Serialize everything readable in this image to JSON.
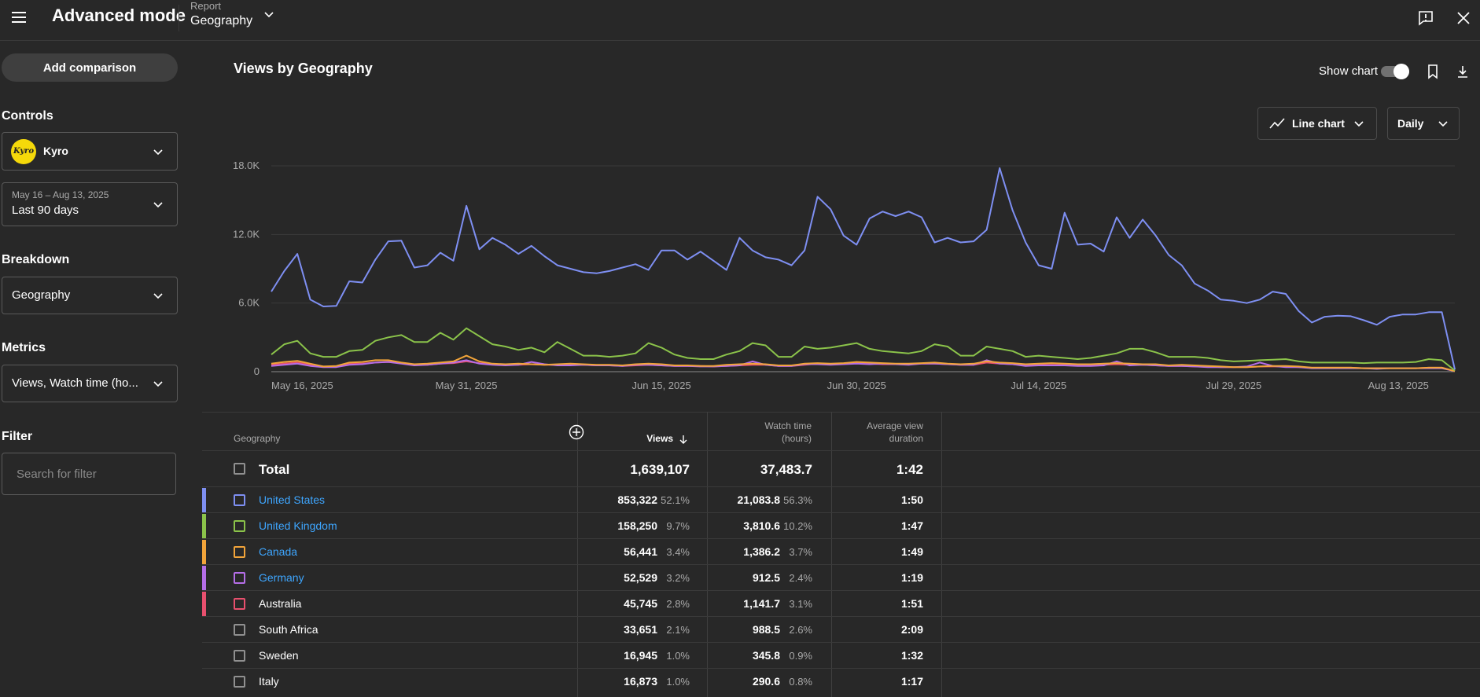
{
  "app": {
    "title": "Advanced mode"
  },
  "report": {
    "label": "Report",
    "value": "Geography"
  },
  "sidebar": {
    "add_comparison": "Add comparison",
    "controls_heading": "Controls",
    "channel": {
      "name": "Kyro",
      "avatar_text": "Kyro"
    },
    "date": {
      "range": "May 16 – Aug 13, 2025",
      "label": "Last 90 days"
    },
    "breakdown_heading": "Breakdown",
    "breakdown_value": "Geography",
    "metrics_heading": "Metrics",
    "metrics_value": "Views, Watch time (ho...",
    "filter_heading": "Filter",
    "filter_placeholder": "Search for filter"
  },
  "main": {
    "title": "Views by Geography",
    "show_chart_label": "Show chart",
    "show_chart_on": true,
    "chart_type_label": "Line chart",
    "granularity_label": "Daily"
  },
  "chart_data": {
    "type": "line",
    "y_ticks": [
      {
        "value": 0,
        "label": "0"
      },
      {
        "value": 6000,
        "label": "6.0K"
      },
      {
        "value": 12000,
        "label": "12.0K"
      },
      {
        "value": 18000,
        "label": "18.0K"
      }
    ],
    "ylim": [
      0,
      18000
    ],
    "x_ticks": [
      {
        "index": 0,
        "label": "May 16, 2025"
      },
      {
        "index": 15,
        "label": "May 31, 2025"
      },
      {
        "index": 30,
        "label": "Jun 15, 2025"
      },
      {
        "index": 45,
        "label": "Jun 30, 2025"
      },
      {
        "index": 59,
        "label": "Jul 14, 2025"
      },
      {
        "index": 74,
        "label": "Jul 29, 2025"
      },
      {
        "index": 89,
        "label": "Aug 13, 2025"
      }
    ],
    "grid": true,
    "series": [
      {
        "name": "United States",
        "color": "#7e8ff2",
        "values": [
          7000,
          8800,
          10300,
          6300,
          5700,
          5750,
          7900,
          7800,
          9800,
          11400,
          11450,
          9100,
          9300,
          10400,
          9700,
          14500,
          10700,
          11700,
          11100,
          10300,
          11000,
          10100,
          9300,
          9000,
          8700,
          8600,
          8800,
          9100,
          9400,
          8900,
          10600,
          10600,
          9800,
          10500,
          9700,
          8900,
          11700,
          10600,
          10000,
          9800,
          9300,
          10600,
          15300,
          14200,
          11900,
          11100,
          13400,
          14000,
          13600,
          14000,
          13500,
          11300,
          11700,
          11300,
          11400,
          12400,
          17800,
          14100,
          11300,
          9300,
          9000,
          13900,
          11100,
          11200,
          10500,
          13500,
          11700,
          13300,
          11900,
          10200,
          9300,
          7700,
          7100,
          6300,
          6200,
          6000,
          6300,
          7000,
          6800,
          5300,
          4300,
          4800,
          4900,
          4850,
          4500,
          4100,
          4800,
          5000,
          5000,
          5200,
          5200,
          200
        ]
      },
      {
        "name": "United Kingdom",
        "color": "#8bc34a",
        "values": [
          1500,
          2400,
          2700,
          1600,
          1300,
          1300,
          1800,
          1900,
          2700,
          3000,
          3200,
          2600,
          2600,
          3400,
          2800,
          3800,
          3100,
          2400,
          2200,
          1900,
          2100,
          1700,
          2600,
          2000,
          1400,
          1400,
          1300,
          1400,
          1600,
          2500,
          2100,
          1500,
          1200,
          1100,
          1100,
          1500,
          1800,
          2500,
          2300,
          1300,
          1300,
          2200,
          2000,
          2100,
          2300,
          2500,
          2000,
          1800,
          1700,
          1600,
          1800,
          2400,
          2200,
          1400,
          1400,
          2200,
          2000,
          1800,
          1300,
          1400,
          1300,
          1200,
          1100,
          1200,
          1400,
          1600,
          2000,
          2000,
          1700,
          1300,
          1300,
          1300,
          1200,
          1000,
          900,
          950,
          1000,
          1050,
          1100,
          900,
          800,
          800,
          800,
          800,
          750,
          800,
          800,
          800,
          850,
          1100,
          1000,
          100
        ]
      },
      {
        "name": "Canada",
        "color": "#f2a43a",
        "values": [
          700,
          850,
          950,
          700,
          450,
          500,
          800,
          850,
          1000,
          1000,
          800,
          650,
          700,
          800,
          900,
          1400,
          900,
          700,
          650,
          700,
          650,
          600,
          650,
          700,
          650,
          600,
          600,
          550,
          650,
          700,
          650,
          550,
          550,
          500,
          500,
          600,
          650,
          700,
          650,
          550,
          550,
          700,
          750,
          700,
          750,
          850,
          800,
          750,
          700,
          700,
          750,
          800,
          700,
          650,
          700,
          900,
          800,
          750,
          650,
          700,
          750,
          700,
          650,
          650,
          700,
          750,
          700,
          650,
          650,
          550,
          600,
          550,
          500,
          450,
          400,
          400,
          450,
          500,
          500,
          450,
          350,
          350,
          350,
          350,
          300,
          300,
          300,
          300,
          300,
          350,
          350,
          50
        ]
      },
      {
        "name": "Germany",
        "color": "#b56ee8",
        "values": [
          500,
          600,
          700,
          500,
          400,
          400,
          600,
          650,
          800,
          850,
          700,
          550,
          600,
          700,
          800,
          1000,
          700,
          600,
          550,
          600,
          850,
          650,
          550,
          550,
          600,
          550,
          550,
          500,
          600,
          600,
          550,
          500,
          500,
          450,
          450,
          500,
          550,
          900,
          600,
          500,
          500,
          650,
          650,
          600,
          650,
          700,
          650,
          700,
          650,
          600,
          700,
          700,
          650,
          600,
          600,
          1000,
          700,
          650,
          500,
          550,
          550,
          550,
          500,
          500,
          550,
          900,
          550,
          600,
          550,
          500,
          500,
          450,
          400,
          400,
          400,
          450,
          800,
          500,
          400,
          400,
          300,
          300,
          300,
          300,
          300,
          250,
          300,
          300,
          300,
          300,
          300,
          50
        ]
      },
      {
        "name": "Australia",
        "color": "#e8506e",
        "values": [
          600,
          700,
          800,
          600,
          450,
          450,
          700,
          700,
          800,
          850,
          750,
          600,
          600,
          700,
          750,
          900,
          750,
          650,
          600,
          600,
          650,
          600,
          600,
          600,
          600,
          550,
          550,
          500,
          550,
          600,
          550,
          500,
          500,
          500,
          450,
          500,
          550,
          600,
          600,
          500,
          500,
          600,
          700,
          650,
          700,
          750,
          700,
          650,
          650,
          650,
          700,
          700,
          650,
          600,
          600,
          800,
          700,
          650,
          550,
          600,
          600,
          600,
          550,
          550,
          600,
          650,
          600,
          600,
          550,
          500,
          500,
          450,
          450,
          400,
          400,
          400,
          450,
          450,
          450,
          400,
          350,
          350,
          350,
          350,
          300,
          300,
          300,
          300,
          300,
          350,
          350,
          50
        ]
      }
    ]
  },
  "table": {
    "headers": {
      "geography": "Geography",
      "views": "Views",
      "watch_time_1": "Watch time",
      "watch_time_2": "(hours)",
      "avd_1": "Average view",
      "avd_2": "duration"
    },
    "total": {
      "label": "Total",
      "views": "1,639,107",
      "watch": "37,483.7",
      "avd": "1:42"
    },
    "rows": [
      {
        "name": "United States",
        "views": "853,322",
        "views_pct": "52.1%",
        "watch": "21,083.8",
        "watch_pct": "56.3%",
        "avd": "1:50",
        "color": "#7e8ff2",
        "link": true
      },
      {
        "name": "United Kingdom",
        "views": "158,250",
        "views_pct": "9.7%",
        "watch": "3,810.6",
        "watch_pct": "10.2%",
        "avd": "1:47",
        "color": "#8bc34a",
        "link": true
      },
      {
        "name": "Canada",
        "views": "56,441",
        "views_pct": "3.4%",
        "watch": "1,386.2",
        "watch_pct": "3.7%",
        "avd": "1:49",
        "color": "#f2a43a",
        "link": true
      },
      {
        "name": "Germany",
        "views": "52,529",
        "views_pct": "3.2%",
        "watch": "912.5",
        "watch_pct": "2.4%",
        "avd": "1:19",
        "color": "#b56ee8",
        "link": true
      },
      {
        "name": "Australia",
        "views": "45,745",
        "views_pct": "2.8%",
        "watch": "1,141.7",
        "watch_pct": "3.1%",
        "avd": "1:51",
        "color": "#e8506e",
        "link": false
      },
      {
        "name": "South Africa",
        "views": "33,651",
        "views_pct": "2.1%",
        "watch": "988.5",
        "watch_pct": "2.6%",
        "avd": "2:09",
        "color": "",
        "link": false
      },
      {
        "name": "Sweden",
        "views": "16,945",
        "views_pct": "1.0%",
        "watch": "345.8",
        "watch_pct": "0.9%",
        "avd": "1:32",
        "color": "",
        "link": false
      },
      {
        "name": "Italy",
        "views": "16,873",
        "views_pct": "1.0%",
        "watch": "290.6",
        "watch_pct": "0.8%",
        "avd": "1:17",
        "color": "",
        "link": false
      }
    ]
  },
  "icons": {
    "menu": "menu-icon",
    "report_chevron": "chevron-down-icon",
    "feedback": "feedback-icon",
    "close": "close-icon",
    "bookmark": "bookmark-icon",
    "download": "download-icon",
    "line_chart": "line-chart-icon",
    "add_column": "add-circle-icon",
    "sort": "arrow-down-icon"
  }
}
